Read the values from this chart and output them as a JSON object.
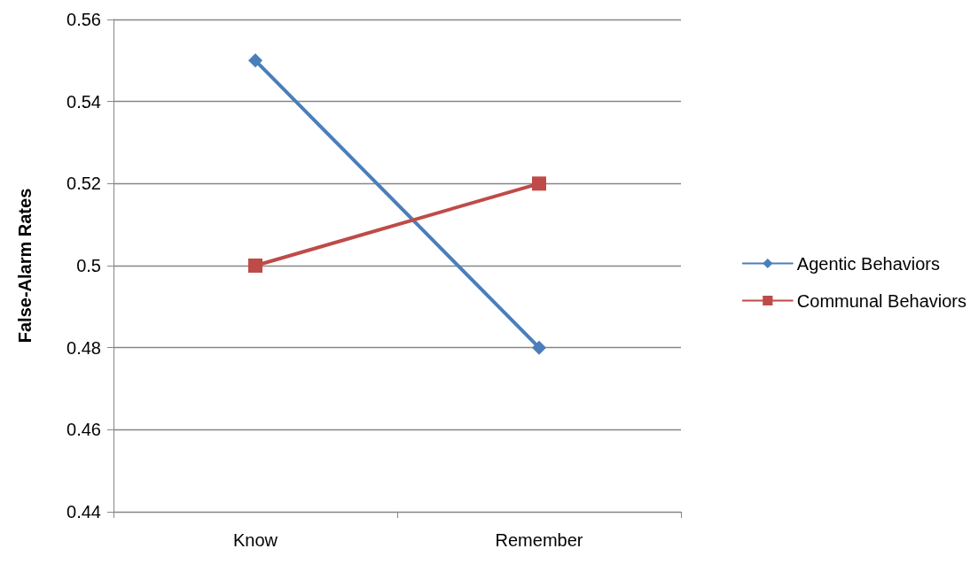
{
  "chart_data": {
    "type": "line",
    "ylabel": "False-Alarm Rates",
    "categories": [
      "Know",
      "Remember"
    ],
    "series": [
      {
        "name": "Agentic Behaviors",
        "color": "#4a7ebb",
        "values": [
          0.55,
          0.48
        ],
        "marker": "diamond"
      },
      {
        "name": "Communal Behaviors",
        "color": "#be4b48",
        "values": [
          0.5,
          0.52
        ],
        "marker": "square"
      }
    ],
    "ylim": [
      0.44,
      0.56
    ],
    "yticks": [
      0.44,
      0.46,
      0.48,
      0.5,
      0.52,
      0.54,
      0.56
    ],
    "grid": "y",
    "legend": "right",
    "line_style": "solid"
  }
}
